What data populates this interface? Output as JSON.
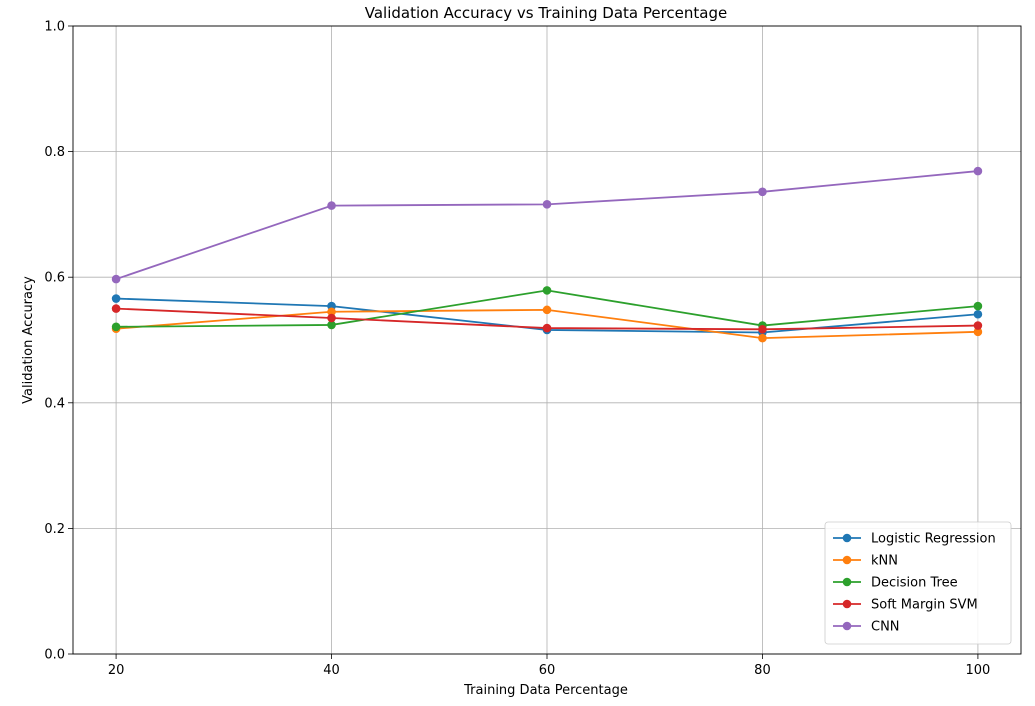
{
  "chart_data": {
    "type": "line",
    "title": "Validation Accuracy vs Training Data Percentage",
    "xlabel": "Training Data Percentage",
    "ylabel": "Validation Accuracy",
    "x": [
      20,
      40,
      60,
      80,
      100
    ],
    "x_ticks": [
      "20",
      "40",
      "60",
      "80",
      "100"
    ],
    "y_ticks": [
      "0.0",
      "0.2",
      "0.4",
      "0.6",
      "0.8",
      "1.0"
    ],
    "xlim": [
      16,
      104
    ],
    "ylim": [
      0.0,
      1.0
    ],
    "grid": true,
    "legend_position": "lower-right",
    "series": [
      {
        "name": "Logistic Regression",
        "color": "#1f77b4",
        "values": [
          0.566,
          0.554,
          0.516,
          0.512,
          0.541
        ]
      },
      {
        "name": "kNN",
        "color": "#ff7f0e",
        "values": [
          0.518,
          0.545,
          0.548,
          0.503,
          0.513
        ]
      },
      {
        "name": "Decision Tree",
        "color": "#2ca02c",
        "values": [
          0.521,
          0.524,
          0.579,
          0.523,
          0.554
        ]
      },
      {
        "name": "Soft Margin SVM",
        "color": "#d62728",
        "values": [
          0.55,
          0.535,
          0.519,
          0.517,
          0.523
        ]
      },
      {
        "name": "CNN",
        "color": "#9467bd",
        "values": [
          0.597,
          0.714,
          0.716,
          0.736,
          0.769
        ]
      }
    ]
  }
}
